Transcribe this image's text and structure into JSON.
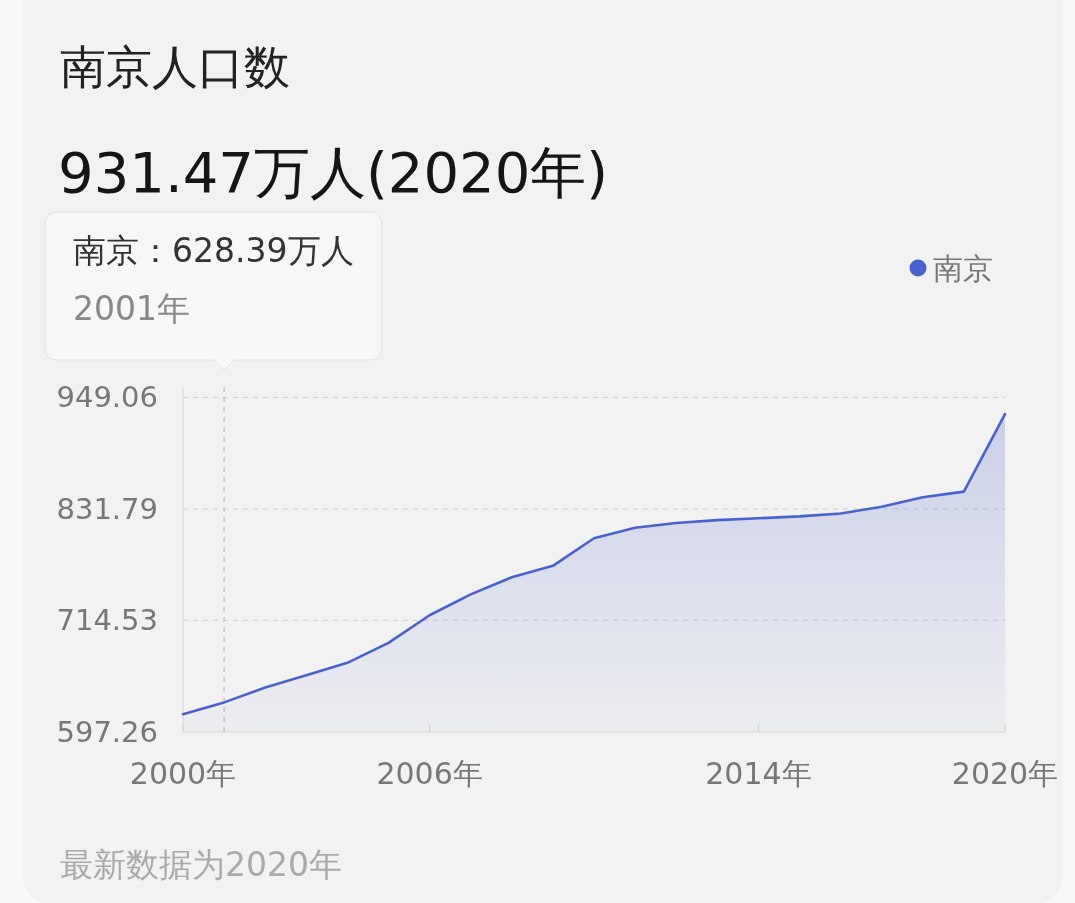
{
  "chart_data": {
    "type": "area",
    "title": "南京人口数",
    "subtitle": "931.47万人(2020年)",
    "x": [
      2000,
      2001,
      2002,
      2003,
      2004,
      2005,
      2006,
      2007,
      2008,
      2009,
      2010,
      2011,
      2012,
      2013,
      2014,
      2015,
      2016,
      2017,
      2018,
      2019,
      2020
    ],
    "series": [
      {
        "name": "南京",
        "color": "#4a62cc",
        "values": [
          616,
          628.39,
          644,
          657,
          670,
          691,
          720,
          742,
          760,
          772,
          801,
          812,
          817,
          820,
          822,
          824,
          827,
          834,
          844,
          850,
          931.47
        ]
      }
    ],
    "xlim": [
      2000,
      2020
    ],
    "xticks": [
      {
        "value": 2000,
        "label": "2000年"
      },
      {
        "value": 2006,
        "label": "2006年"
      },
      {
        "value": 2014,
        "label": "2014年"
      },
      {
        "value": 2020,
        "label": "2020年"
      }
    ],
    "ylim": [
      597.26,
      960
    ],
    "yticks": [
      597.26,
      714.53,
      831.79,
      949.06
    ],
    "grid": "y",
    "legend": "top right",
    "ref_lines": [
      {
        "axis": "x",
        "value": 2001,
        "line_style": "dashed",
        "color": "#c8c8c8"
      }
    ],
    "annotations": [
      "南京：628.39万人\n2001年",
      "最新数据为2020年"
    ]
  }
}
